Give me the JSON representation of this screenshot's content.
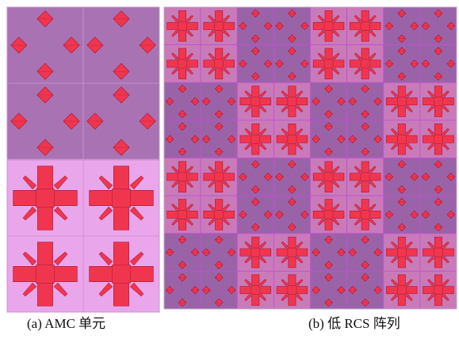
{
  "captions": {
    "a": "(a) AMC 单元",
    "b": "(b)  低 RCS 阵列"
  },
  "colors": {
    "background": "#ffffff",
    "panel_border": "#b9a7c4",
    "cell_a_fill": "#a972b3",
    "cell_a_line": "#c492cc",
    "cell_b_fill": "#eaa6ea",
    "cell_b_line": "#d58cd8",
    "array_cell_a_fill": "#9a63a8",
    "array_cell_b_fill": "#c97ab8",
    "array_grid_line": "#c24fd6",
    "patch_fill": "#f0364f",
    "patch_stroke": "#b01a36"
  },
  "icons": {
    "cell_a_patch": "diamond-patch-icon",
    "cell_b_patch": "cross-patch-icon"
  },
  "array": {
    "rows": 8,
    "cols": 8,
    "checker_block": 2
  }
}
